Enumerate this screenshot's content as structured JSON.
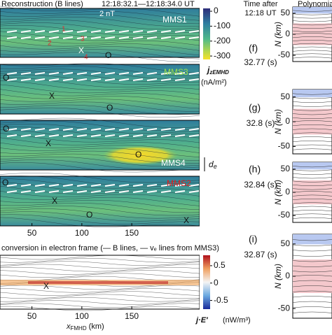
{
  "header": {
    "title": "Reconstruction (B lines)",
    "time_range": "12:18:32.1—12:18:34.0 UT",
    "time_col": "Time after",
    "time_col2": "12:18 UT",
    "right_col": "Polynomia"
  },
  "panels": [
    {
      "label": "MMS1",
      "letter": "(f)",
      "time": "32.77 (s)"
    },
    {
      "label": "MMS3",
      "letter": "(g)",
      "time": "32.8 (s)"
    },
    {
      "label": "MMS4",
      "letter": "(h)",
      "time": "32.84 (s)"
    },
    {
      "label": "MMS2",
      "letter": "(i)",
      "time": "32.87 (s)"
    }
  ],
  "x_axis": {
    "label": "x",
    "sub": "FMHD",
    "unit": " (km)",
    "xlim": [
      18,
      218
    ],
    "xticks": [
      50,
      100,
      150
    ]
  },
  "colorbar_j": {
    "label": "j",
    "sub": "zEMHD",
    "unit": "(nA/m²)",
    "ylim": [
      -323,
      19
    ],
    "yticks": [
      0,
      -100,
      -200,
      -300
    ]
  },
  "colorbar_e": {
    "label": "j·E′",
    "unit": "(nW/m³)",
    "ylim": [
      -0.75,
      0.8
    ],
    "yticks": [
      0.5,
      0,
      -0.5
    ]
  },
  "bottom_title": "conversion in electron frame (— B lines, — vₑ lines from MMS3)",
  "n_axis": {
    "label": "N (km)",
    "ylim": [
      -65,
      65
    ],
    "yticks": [
      50,
      0,
      -50
    ]
  },
  "annotations": {
    "scale": "2 nT",
    "de": "d",
    "de_sub": "e",
    "x": "X",
    "o": "O",
    "nums": [
      "1",
      "2",
      "3",
      "4"
    ]
  }
}
